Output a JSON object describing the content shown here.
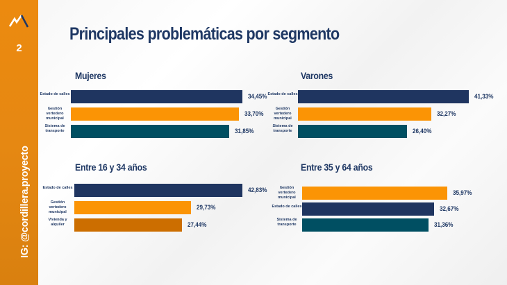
{
  "sidebar": {
    "logo_icon": "mountain-icon",
    "page_number": "2",
    "handle": "IG: @cordillera.proyecto",
    "color": "#E8870E"
  },
  "title": "Principales problemáticas por segmento",
  "colors": {
    "navy": "#1f3560",
    "orange": "#fb9405",
    "teal": "#004f62",
    "dark_orange": "#cc6e00"
  },
  "chart_data": [
    {
      "type": "bar",
      "orientation": "horizontal",
      "title": "Mujeres",
      "categories": [
        "Estado de calles",
        "Gestión vertedero municipal",
        "Sistema de transporte"
      ],
      "values": [
        34.45,
        33.7,
        31.85
      ],
      "labels": [
        "34,45%",
        "33,70%",
        "31,85%"
      ],
      "colors": [
        "navy",
        "orange",
        "teal"
      ]
    },
    {
      "type": "bar",
      "orientation": "horizontal",
      "title": "Varones",
      "categories": [
        "Estado de calles",
        "Gestión vertedero municipal",
        "Sistema de transporte"
      ],
      "values": [
        41.33,
        32.27,
        26.4
      ],
      "labels": [
        "41,33%",
        "32,27%",
        "26,40%"
      ],
      "colors": [
        "navy",
        "orange",
        "teal"
      ]
    },
    {
      "type": "bar",
      "orientation": "horizontal",
      "title": "Entre 16 y 34 años",
      "categories": [
        "Estado de calles",
        "Gestión vertedero municipal",
        "Vivienda y alquiler"
      ],
      "values": [
        42.83,
        29.73,
        27.44
      ],
      "labels": [
        "42,83%",
        "29,73%",
        "27,44%"
      ],
      "colors": [
        "navy",
        "orange",
        "dark_orange"
      ]
    },
    {
      "type": "bar",
      "orientation": "horizontal",
      "title": "Entre 35 y 64 años",
      "categories": [
        "Gestión vertedero municipal",
        "Estado de calles",
        "Sistema de transporte"
      ],
      "values": [
        35.97,
        32.67,
        31.36
      ],
      "labels": [
        "35,97%",
        "32,67%",
        "31,36%"
      ],
      "colors": [
        "orange",
        "navy",
        "teal"
      ]
    }
  ]
}
